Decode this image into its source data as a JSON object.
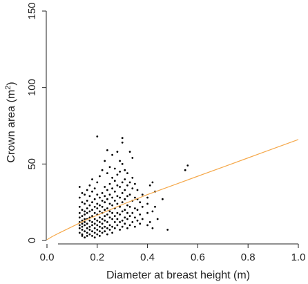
{
  "chart_data": {
    "type": "scatter",
    "title": "",
    "xlabel": "Diameter at breast height (m)",
    "ylabel_main": "Crown area (m",
    "ylabel_sup": "2",
    "ylabel_close": ")",
    "xlim": [
      0,
      1.0
    ],
    "ylim": [
      0,
      150
    ],
    "xticks": [
      "0.0",
      "0.2",
      "0.4",
      "0.6",
      "0.8",
      "1.0"
    ],
    "yticks": [
      "0",
      "50",
      "100",
      "150"
    ],
    "grid": false,
    "series": [
      {
        "kind": "points",
        "color": "#000000",
        "points": [
          [
            0.13,
            10
          ],
          [
            0.13,
            12
          ],
          [
            0.13,
            15
          ],
          [
            0.13,
            18
          ],
          [
            0.13,
            22
          ],
          [
            0.13,
            28
          ],
          [
            0.13,
            35
          ],
          [
            0.13,
            8
          ],
          [
            0.13,
            5
          ],
          [
            0.14,
            7
          ],
          [
            0.14,
            9
          ],
          [
            0.14,
            11
          ],
          [
            0.14,
            13
          ],
          [
            0.14,
            16
          ],
          [
            0.14,
            20
          ],
          [
            0.14,
            25
          ],
          [
            0.14,
            31
          ],
          [
            0.14,
            4
          ],
          [
            0.14,
            3
          ],
          [
            0.15,
            6
          ],
          [
            0.15,
            10
          ],
          [
            0.15,
            12
          ],
          [
            0.15,
            14
          ],
          [
            0.15,
            17
          ],
          [
            0.15,
            19
          ],
          [
            0.15,
            24
          ],
          [
            0.15,
            30
          ],
          [
            0.15,
            2
          ],
          [
            0.16,
            5
          ],
          [
            0.16,
            8
          ],
          [
            0.16,
            11
          ],
          [
            0.16,
            14
          ],
          [
            0.16,
            18
          ],
          [
            0.16,
            21
          ],
          [
            0.16,
            26
          ],
          [
            0.16,
            33
          ],
          [
            0.16,
            3
          ],
          [
            0.17,
            4
          ],
          [
            0.17,
            7
          ],
          [
            0.17,
            9
          ],
          [
            0.17,
            13
          ],
          [
            0.17,
            15
          ],
          [
            0.17,
            19
          ],
          [
            0.17,
            23
          ],
          [
            0.17,
            29
          ],
          [
            0.17,
            36
          ],
          [
            0.18,
            3
          ],
          [
            0.18,
            6
          ],
          [
            0.18,
            10
          ],
          [
            0.18,
            12
          ],
          [
            0.18,
            16
          ],
          [
            0.18,
            20
          ],
          [
            0.18,
            25
          ],
          [
            0.18,
            32
          ],
          [
            0.18,
            40
          ],
          [
            0.19,
            2
          ],
          [
            0.19,
            5
          ],
          [
            0.19,
            8
          ],
          [
            0.19,
            11
          ],
          [
            0.19,
            14
          ],
          [
            0.19,
            18
          ],
          [
            0.19,
            22
          ],
          [
            0.19,
            27
          ],
          [
            0.19,
            34
          ],
          [
            0.2,
            4
          ],
          [
            0.2,
            7
          ],
          [
            0.2,
            10
          ],
          [
            0.2,
            13
          ],
          [
            0.2,
            17
          ],
          [
            0.2,
            21
          ],
          [
            0.2,
            24
          ],
          [
            0.2,
            30
          ],
          [
            0.2,
            38
          ],
          [
            0.2,
            68
          ],
          [
            0.21,
            3
          ],
          [
            0.21,
            6
          ],
          [
            0.21,
            9
          ],
          [
            0.21,
            12
          ],
          [
            0.21,
            15
          ],
          [
            0.21,
            19
          ],
          [
            0.21,
            23
          ],
          [
            0.21,
            28
          ],
          [
            0.21,
            42
          ],
          [
            0.22,
            5
          ],
          [
            0.22,
            8
          ],
          [
            0.22,
            11
          ],
          [
            0.22,
            14
          ],
          [
            0.22,
            18
          ],
          [
            0.22,
            22
          ],
          [
            0.22,
            26
          ],
          [
            0.22,
            31
          ],
          [
            0.22,
            46
          ],
          [
            0.23,
            6
          ],
          [
            0.23,
            9
          ],
          [
            0.23,
            13
          ],
          [
            0.23,
            16
          ],
          [
            0.23,
            20
          ],
          [
            0.23,
            25
          ],
          [
            0.23,
            29
          ],
          [
            0.23,
            35
          ],
          [
            0.23,
            52
          ],
          [
            0.24,
            4
          ],
          [
            0.24,
            8
          ],
          [
            0.24,
            12
          ],
          [
            0.24,
            17
          ],
          [
            0.24,
            21
          ],
          [
            0.24,
            27
          ],
          [
            0.24,
            33
          ],
          [
            0.24,
            44
          ],
          [
            0.24,
            59
          ],
          [
            0.25,
            7
          ],
          [
            0.25,
            10
          ],
          [
            0.25,
            15
          ],
          [
            0.25,
            19
          ],
          [
            0.25,
            24
          ],
          [
            0.25,
            30
          ],
          [
            0.25,
            37
          ],
          [
            0.25,
            48
          ],
          [
            0.26,
            5
          ],
          [
            0.26,
            9
          ],
          [
            0.26,
            14
          ],
          [
            0.26,
            18
          ],
          [
            0.26,
            23
          ],
          [
            0.26,
            28
          ],
          [
            0.26,
            34
          ],
          [
            0.26,
            41
          ],
          [
            0.26,
            56
          ],
          [
            0.27,
            8
          ],
          [
            0.27,
            12
          ],
          [
            0.27,
            16
          ],
          [
            0.27,
            21
          ],
          [
            0.27,
            26
          ],
          [
            0.27,
            32
          ],
          [
            0.27,
            39
          ],
          [
            0.27,
            47
          ],
          [
            0.28,
            10
          ],
          [
            0.28,
            14
          ],
          [
            0.28,
            18
          ],
          [
            0.28,
            24
          ],
          [
            0.28,
            29
          ],
          [
            0.28,
            36
          ],
          [
            0.28,
            43
          ],
          [
            0.28,
            58
          ],
          [
            0.29,
            7
          ],
          [
            0.29,
            12
          ],
          [
            0.29,
            17
          ],
          [
            0.29,
            22
          ],
          [
            0.29,
            28
          ],
          [
            0.29,
            35
          ],
          [
            0.29,
            45
          ],
          [
            0.29,
            52
          ],
          [
            0.3,
            9
          ],
          [
            0.3,
            13
          ],
          [
            0.3,
            19
          ],
          [
            0.3,
            25
          ],
          [
            0.3,
            31
          ],
          [
            0.3,
            38
          ],
          [
            0.3,
            50
          ],
          [
            0.3,
            64
          ],
          [
            0.3,
            67
          ],
          [
            0.31,
            11
          ],
          [
            0.31,
            15
          ],
          [
            0.31,
            20
          ],
          [
            0.31,
            27
          ],
          [
            0.31,
            33
          ],
          [
            0.31,
            40
          ],
          [
            0.31,
            46
          ],
          [
            0.32,
            8
          ],
          [
            0.32,
            14
          ],
          [
            0.32,
            18
          ],
          [
            0.32,
            23
          ],
          [
            0.32,
            29
          ],
          [
            0.32,
            36
          ],
          [
            0.32,
            44
          ],
          [
            0.33,
            10
          ],
          [
            0.33,
            16
          ],
          [
            0.33,
            22
          ],
          [
            0.33,
            30
          ],
          [
            0.33,
            38
          ],
          [
            0.33,
            58
          ],
          [
            0.34,
            12
          ],
          [
            0.34,
            18
          ],
          [
            0.34,
            26
          ],
          [
            0.34,
            34
          ],
          [
            0.34,
            41
          ],
          [
            0.34,
            54
          ],
          [
            0.35,
            9
          ],
          [
            0.35,
            15
          ],
          [
            0.35,
            21
          ],
          [
            0.35,
            28
          ],
          [
            0.35,
            37
          ],
          [
            0.36,
            13
          ],
          [
            0.36,
            20
          ],
          [
            0.36,
            27
          ],
          [
            0.36,
            33
          ],
          [
            0.37,
            11
          ],
          [
            0.37,
            17
          ],
          [
            0.37,
            25
          ],
          [
            0.38,
            14
          ],
          [
            0.38,
            22
          ],
          [
            0.38,
            30
          ],
          [
            0.4,
            10
          ],
          [
            0.4,
            18
          ],
          [
            0.4,
            24
          ],
          [
            0.4,
            28
          ],
          [
            0.41,
            12
          ],
          [
            0.41,
            36
          ],
          [
            0.42,
            8
          ],
          [
            0.42,
            19
          ],
          [
            0.42,
            38
          ],
          [
            0.43,
            22
          ],
          [
            0.43,
            32
          ],
          [
            0.44,
            14
          ],
          [
            0.46,
            27
          ],
          [
            0.48,
            7
          ],
          [
            0.55,
            46
          ],
          [
            0.56,
            49
          ]
        ]
      },
      {
        "kind": "curve",
        "color": "#f5a84a",
        "x": [
          0.0,
          0.02,
          0.05,
          0.1,
          0.15,
          0.2,
          0.25,
          0.3,
          0.4,
          0.5,
          0.6,
          0.7,
          0.8,
          0.9,
          1.0
        ],
        "y": [
          0.5,
          2.5,
          5,
          9,
          13,
          16.5,
          20,
          23.5,
          30,
          36,
          42,
          48,
          54,
          60,
          66
        ]
      }
    ]
  }
}
